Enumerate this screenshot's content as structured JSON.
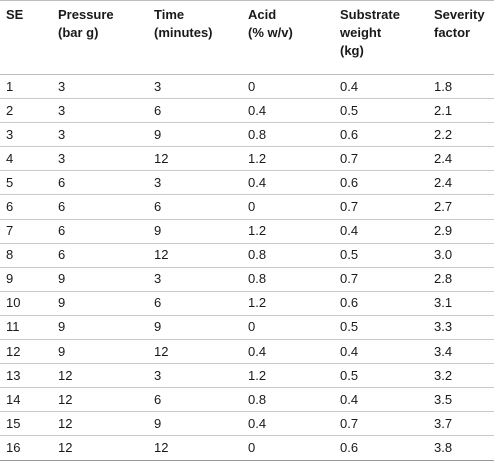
{
  "table": {
    "headers": [
      "SE",
      "Pressure\n(bar g)",
      "Time\n(minutes)",
      "Acid\n(% w/v)",
      "Substrate\nweight\n(kg)",
      "Severity\nfactor"
    ],
    "rows": [
      [
        "1",
        "3",
        "3",
        "0",
        "0.4",
        "1.8"
      ],
      [
        "2",
        "3",
        "6",
        "0.4",
        "0.5",
        "2.1"
      ],
      [
        "3",
        "3",
        "9",
        "0.8",
        "0.6",
        "2.2"
      ],
      [
        "4",
        "3",
        "12",
        "1.2",
        "0.7",
        "2.4"
      ],
      [
        "5",
        "6",
        "3",
        "0.4",
        "0.6",
        "2.4"
      ],
      [
        "6",
        "6",
        "6",
        "0",
        "0.7",
        "2.7"
      ],
      [
        "7",
        "6",
        "9",
        "1.2",
        "0.4",
        "2.9"
      ],
      [
        "8",
        "6",
        "12",
        "0.8",
        "0.5",
        "3.0"
      ],
      [
        "9",
        "9",
        "3",
        "0.8",
        "0.7",
        "2.8"
      ],
      [
        "10",
        "9",
        "6",
        "1.2",
        "0.6",
        "3.1"
      ],
      [
        "11",
        "9",
        "9",
        "0",
        "0.5",
        "3.3"
      ],
      [
        "12",
        "9",
        "12",
        "0.4",
        "0.4",
        "3.4"
      ],
      [
        "13",
        "12",
        "3",
        "1.2",
        "0.5",
        "3.2"
      ],
      [
        "14",
        "12",
        "6",
        "0.8",
        "0.4",
        "3.5"
      ],
      [
        "15",
        "12",
        "9",
        "0.4",
        "0.7",
        "3.7"
      ],
      [
        "16",
        "12",
        "12",
        "0",
        "0.6",
        "3.8"
      ]
    ]
  }
}
